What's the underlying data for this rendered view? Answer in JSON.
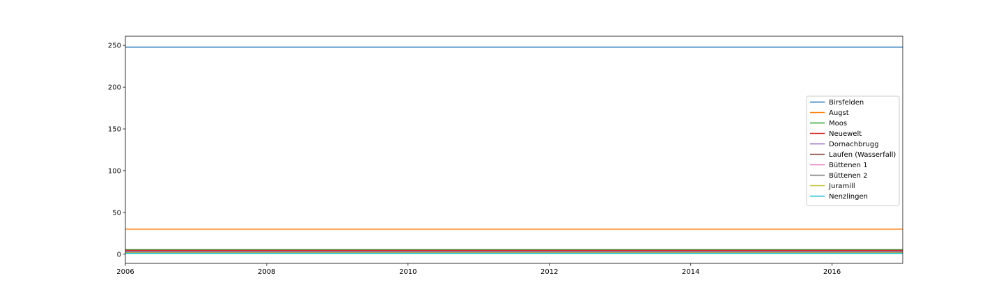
{
  "chart_data": {
    "type": "line",
    "title": "",
    "xlabel": "",
    "ylabel": "",
    "x": [
      2006,
      2017
    ],
    "xlim": [
      2006,
      2017
    ],
    "ylim": [
      -11,
      261
    ],
    "xticks": [
      2006,
      2008,
      2010,
      2012,
      2014,
      2016
    ],
    "yticks": [
      0,
      50,
      100,
      150,
      200,
      250
    ],
    "xtick_labels": [
      "2006",
      "2008",
      "2010",
      "2012",
      "2014",
      "2016"
    ],
    "ytick_labels": [
      "0",
      "50",
      "100",
      "150",
      "200",
      "250"
    ],
    "grid": false,
    "legend_position": "center-right",
    "series": [
      {
        "name": "Birsfelden",
        "color": "#1f77b4",
        "values": [
          248,
          248
        ]
      },
      {
        "name": "Augst",
        "color": "#ff7f0e",
        "values": [
          30,
          30
        ]
      },
      {
        "name": "Moos",
        "color": "#2ca02c",
        "values": [
          5.5,
          5.5
        ]
      },
      {
        "name": "Neuewelt",
        "color": "#d62728",
        "values": [
          4.5,
          4.5
        ]
      },
      {
        "name": "Dornachbrugg",
        "color": "#9467bd",
        "values": [
          3.5,
          3.5
        ]
      },
      {
        "name": "Laufen (Wasserfall)",
        "color": "#8c564b",
        "values": [
          3,
          3
        ]
      },
      {
        "name": "Büttenen 1",
        "color": "#e377c2",
        "values": [
          2.5,
          2.5
        ]
      },
      {
        "name": "Büttenen 2",
        "color": "#7f7f7f",
        "values": [
          2,
          2
        ]
      },
      {
        "name": "Juramill",
        "color": "#bcbd22",
        "values": [
          1.5,
          1.5
        ]
      },
      {
        "name": "Nenzlingen",
        "color": "#17becf",
        "values": [
          1,
          1
        ]
      }
    ]
  }
}
